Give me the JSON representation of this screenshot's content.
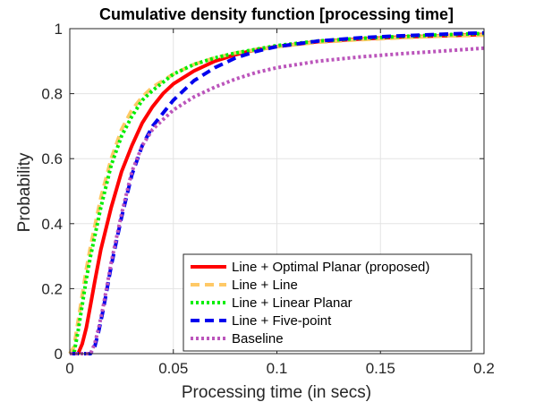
{
  "chart_data": {
    "type": "line",
    "title": "Cumulative density function [processing time]",
    "xlabel": "Processing time (in secs)",
    "ylabel": "Probability",
    "xlim": [
      0,
      0.2
    ],
    "ylim": [
      0,
      1
    ],
    "xticks": [
      0,
      0.05,
      0.1,
      0.15,
      0.2
    ],
    "xtick_labels": [
      "0",
      "0.05",
      "0.1",
      "0.15",
      "0.2"
    ],
    "yticks": [
      0,
      0.2,
      0.4,
      0.6,
      0.8,
      1
    ],
    "ytick_labels": [
      "0",
      "0.2",
      "0.4",
      "0.6",
      "0.8",
      "1"
    ],
    "grid": true,
    "legend_position": "bottom-right",
    "series": [
      {
        "name": "Line + Optimal Planar (proposed)",
        "color": "#ff0000",
        "style": "solid",
        "x": [
          0,
          0.004,
          0.006,
          0.008,
          0.01,
          0.012,
          0.015,
          0.02,
          0.025,
          0.03,
          0.035,
          0.04,
          0.045,
          0.05,
          0.06,
          0.07,
          0.08,
          0.09,
          0.1,
          0.12,
          0.14,
          0.16,
          0.18,
          0.2
        ],
        "y": [
          0,
          0.0,
          0.03,
          0.08,
          0.15,
          0.22,
          0.32,
          0.45,
          0.56,
          0.64,
          0.71,
          0.76,
          0.8,
          0.83,
          0.87,
          0.9,
          0.92,
          0.935,
          0.945,
          0.96,
          0.968,
          0.974,
          0.978,
          0.982
        ]
      },
      {
        "name": "Line + Line",
        "color": "#ffc966",
        "style": "dashed",
        "x": [
          0,
          0.002,
          0.004,
          0.006,
          0.008,
          0.01,
          0.015,
          0.02,
          0.025,
          0.03,
          0.035,
          0.04,
          0.05,
          0.06,
          0.07,
          0.08,
          0.1,
          0.12,
          0.14,
          0.16,
          0.18,
          0.2
        ],
        "y": [
          0,
          0.02,
          0.1,
          0.18,
          0.26,
          0.33,
          0.48,
          0.6,
          0.69,
          0.75,
          0.79,
          0.82,
          0.86,
          0.89,
          0.91,
          0.925,
          0.945,
          0.958,
          0.966,
          0.972,
          0.977,
          0.98
        ]
      },
      {
        "name": "Line + Linear Planar",
        "color": "#00ee00",
        "style": "dotted",
        "x": [
          0,
          0.002,
          0.004,
          0.006,
          0.008,
          0.01,
          0.015,
          0.02,
          0.025,
          0.03,
          0.035,
          0.04,
          0.05,
          0.06,
          0.07,
          0.08,
          0.1,
          0.12,
          0.14,
          0.16,
          0.18,
          0.2
        ],
        "y": [
          0,
          0.0,
          0.07,
          0.15,
          0.23,
          0.3,
          0.45,
          0.58,
          0.67,
          0.73,
          0.78,
          0.81,
          0.86,
          0.89,
          0.91,
          0.925,
          0.948,
          0.962,
          0.97,
          0.976,
          0.981,
          0.985
        ]
      },
      {
        "name": "Line + Five-point",
        "color": "#0000ee",
        "style": "dashed",
        "x": [
          0,
          0.01,
          0.012,
          0.014,
          0.016,
          0.018,
          0.02,
          0.022,
          0.025,
          0.03,
          0.035,
          0.04,
          0.045,
          0.05,
          0.06,
          0.07,
          0.08,
          0.09,
          0.1,
          0.12,
          0.14,
          0.16,
          0.18,
          0.2
        ],
        "y": [
          0,
          0.0,
          0.02,
          0.07,
          0.13,
          0.2,
          0.27,
          0.33,
          0.42,
          0.55,
          0.64,
          0.7,
          0.74,
          0.78,
          0.84,
          0.88,
          0.91,
          0.93,
          0.945,
          0.962,
          0.972,
          0.978,
          0.983,
          0.987
        ]
      },
      {
        "name": "Baseline",
        "color": "#bb55bb",
        "style": "dotted",
        "x": [
          0,
          0.01,
          0.012,
          0.014,
          0.016,
          0.018,
          0.02,
          0.022,
          0.025,
          0.03,
          0.035,
          0.04,
          0.045,
          0.05,
          0.06,
          0.07,
          0.08,
          0.09,
          0.1,
          0.12,
          0.14,
          0.16,
          0.18,
          0.2
        ],
        "y": [
          0,
          0.0,
          0.03,
          0.08,
          0.14,
          0.21,
          0.28,
          0.34,
          0.43,
          0.56,
          0.64,
          0.69,
          0.72,
          0.75,
          0.79,
          0.82,
          0.845,
          0.865,
          0.88,
          0.9,
          0.913,
          0.923,
          0.931,
          0.94
        ]
      }
    ]
  }
}
